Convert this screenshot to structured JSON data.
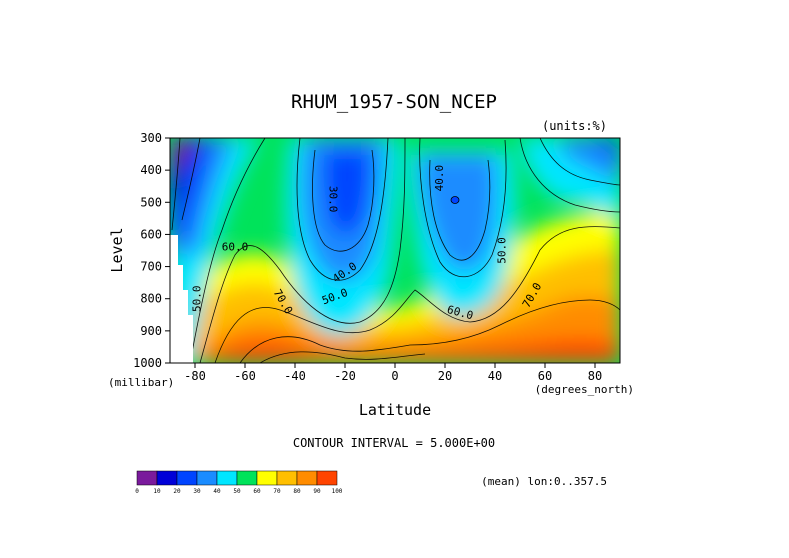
{
  "chart_data": {
    "type": "contour",
    "title": "RHUM_1957-SON_NCEP",
    "units": "(units:%)",
    "xlabel": "Latitude",
    "xunit": "(degrees_north)",
    "ylabel": "Level",
    "yunit": "(millibar)",
    "xlim": [
      -90,
      90
    ],
    "ylim": [
      1000,
      300
    ],
    "x_ticks": [
      -80,
      -60,
      -40,
      -20,
      0,
      20,
      40,
      60,
      80
    ],
    "y_ticks": [
      300,
      400,
      500,
      600,
      700,
      800,
      900,
      1000
    ],
    "contour_interval_text": "CONTOUR INTERVAL = 5.000E+00",
    "footnote": "(mean) lon:0..357.5",
    "colorbar": {
      "levels": [
        0,
        10,
        20,
        30,
        40,
        50,
        60,
        70,
        80,
        90,
        100
      ],
      "colors": [
        "#7a1a9c",
        "#0000d8",
        "#0044ff",
        "#1a8cff",
        "#00e6ff",
        "#00e35a",
        "#ffff00",
        "#ffbf00",
        "#ff8c00",
        "#ff4400"
      ]
    },
    "contour_labels": [
      {
        "text": "30.0",
        "x": -25,
        "y": 490,
        "rotate": 90
      },
      {
        "text": "40.0",
        "x": 18,
        "y": 425,
        "rotate": -90
      },
      {
        "text": "60.0",
        "x": -64,
        "y": 640,
        "rotate": 0
      },
      {
        "text": "50.0",
        "x": 43,
        "y": 650,
        "rotate": -90
      },
      {
        "text": "40.0",
        "x": -20,
        "y": 720,
        "rotate": -35
      },
      {
        "text": "50.0",
        "x": -24,
        "y": 795,
        "rotate": -20
      },
      {
        "text": "50.0",
        "x": -79,
        "y": 800,
        "rotate": -90
      },
      {
        "text": "70.0",
        "x": -45,
        "y": 810,
        "rotate": 60
      },
      {
        "text": "60.0",
        "x": 26,
        "y": 845,
        "rotate": 15
      },
      {
        "text": "70.0",
        "x": 55,
        "y": 790,
        "rotate": -60
      }
    ]
  }
}
